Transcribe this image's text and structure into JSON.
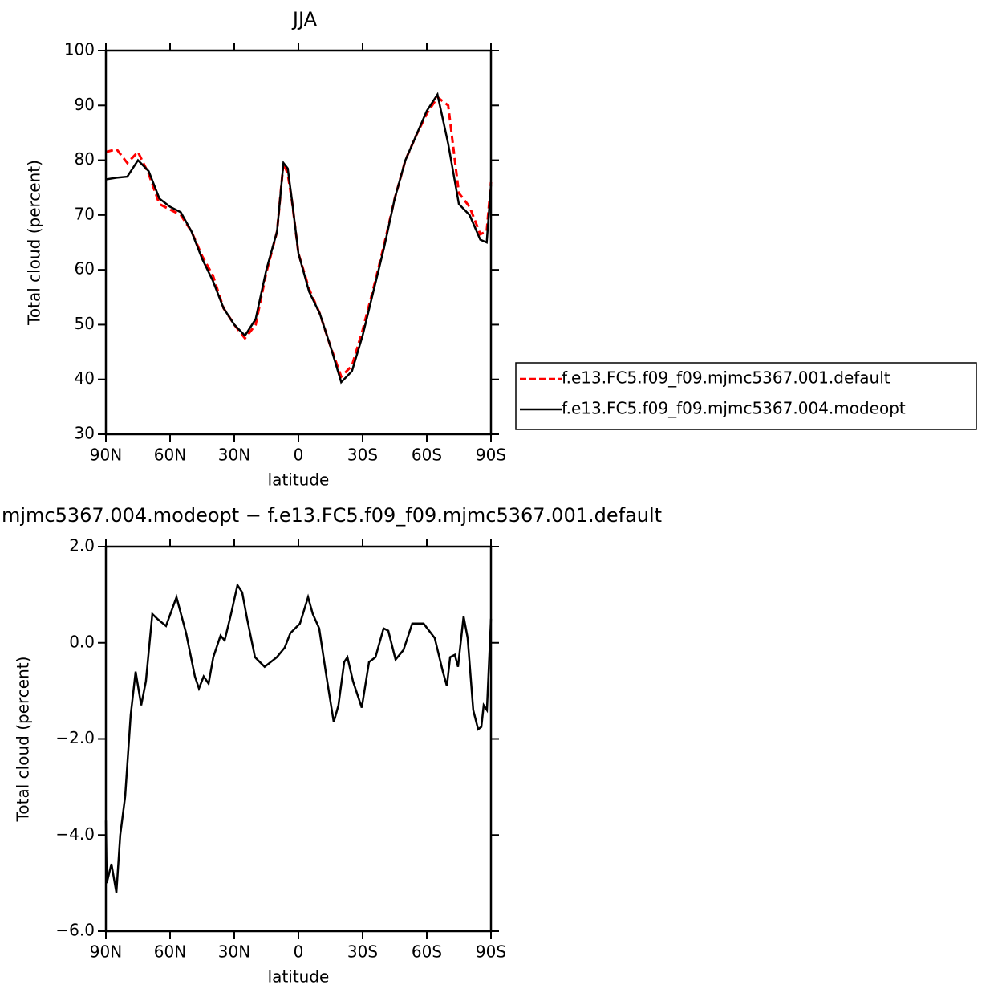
{
  "chart_data": [
    {
      "type": "line",
      "title": "JJA",
      "xlabel": "latitude",
      "ylabel": "Total cloud (percent)",
      "x": [
        90,
        85,
        80,
        75,
        70,
        65,
        60,
        55,
        50,
        45,
        40,
        35,
        30,
        25,
        20,
        15,
        10,
        7,
        5,
        3,
        0,
        -5,
        -10,
        -15,
        -20,
        -25,
        -30,
        -35,
        -40,
        -45,
        -50,
        -55,
        -60,
        -65,
        -70,
        -75,
        -80,
        -85,
        -88,
        -90
      ],
      "series": [
        {
          "name": "f.e13.FC5.f09_f09.mjmc5367.001.default",
          "color": "#ff0000",
          "linestyle": "dashed",
          "values": [
            81.5,
            82,
            79.5,
            81.5,
            77.5,
            72,
            71,
            70,
            67,
            62.5,
            59,
            53,
            50,
            47.5,
            50,
            59.5,
            67,
            79.5,
            77.5,
            72.5,
            63,
            56.5,
            52,
            46,
            40.5,
            42.5,
            49,
            56.5,
            64.5,
            73,
            80,
            84.5,
            88.5,
            91.5,
            90,
            74,
            71.5,
            66.5,
            67,
            76
          ]
        },
        {
          "name": "f.e13.FC5.f09_f09.mjmc5367.004.modeopt",
          "color": "#000000",
          "linestyle": "solid",
          "values": [
            76.5,
            76.8,
            77,
            80,
            78,
            73,
            71.5,
            70.5,
            67,
            62,
            58,
            53,
            50,
            48,
            51,
            60,
            67,
            79.5,
            78.5,
            72.6,
            63,
            56,
            52,
            46,
            39.5,
            41.5,
            48,
            56,
            64,
            73,
            80,
            84.5,
            89,
            92,
            83,
            72,
            70,
            65.5,
            65,
            75.5
          ]
        }
      ],
      "xlim": [
        90,
        -90
      ],
      "xticks": [
        {
          "value": 90,
          "label": "90N"
        },
        {
          "value": 60,
          "label": "60N"
        },
        {
          "value": 30,
          "label": "30N"
        },
        0,
        {
          "value": -30,
          "label": "30S"
        },
        {
          "value": -60,
          "label": "60S"
        },
        {
          "value": -90,
          "label": "90S"
        }
      ],
      "ylim": [
        30,
        100
      ],
      "yticks": [
        30,
        40,
        50,
        60,
        70,
        80,
        90,
        100
      ],
      "legend": "right"
    },
    {
      "type": "line",
      "title": "mjmc5367.004.modeopt − f.e13.FC5.f09_f09.mjmc5367.001.default",
      "xlabel": "latitude",
      "ylabel": "Total cloud (percent)",
      "x": [
        90,
        89.6,
        87.4,
        85.1,
        83.3,
        81,
        78.4,
        76.1,
        73.5,
        71.3,
        68.3,
        66,
        61.9,
        57,
        52.5,
        48.4,
        46.5,
        44.3,
        42,
        39.8,
        36.4,
        34.5,
        31.5,
        28.5,
        26.3,
        24,
        20.3,
        15.8,
        10.1,
        6.4,
        3.8,
        -0.7,
        -4.5,
        -6.7,
        -9.7,
        -13.1,
        -16.5,
        -18.7,
        -21.4,
        -22.9,
        -25.5,
        -29.6,
        -33,
        -36,
        -39.8,
        -42,
        -45.4,
        -49.1,
        -53.2,
        -58.5,
        -63.7,
        -67.5,
        -69.4,
        -70.9,
        -73.1,
        -74.6,
        -77.2,
        -79.1,
        -81.7,
        -84,
        -85.5,
        -86.6,
        -88.1,
        -90
      ],
      "series": [
        {
          "name": null,
          "color": "#000000",
          "linestyle": "solid",
          "values": [
            -3.7,
            -5.0,
            -4.6,
            -5.2,
            -4.0,
            -3.2,
            -1.5,
            -0.6,
            -1.3,
            -0.8,
            0.6,
            0.5,
            0.35,
            0.95,
            0.2,
            -0.7,
            -0.95,
            -0.7,
            -0.85,
            -0.3,
            0.15,
            0.05,
            0.6,
            1.2,
            1.05,
            0.5,
            -0.3,
            -0.5,
            -0.3,
            -0.1,
            0.2,
            0.4,
            0.95,
            0.6,
            0.3,
            -0.7,
            -1.65,
            -1.3,
            -0.4,
            -0.3,
            -0.8,
            -1.35,
            -0.4,
            -0.3,
            0.3,
            0.25,
            -0.35,
            -0.15,
            0.4,
            0.4,
            0.1,
            -0.6,
            -0.9,
            -0.3,
            -0.25,
            -0.5,
            0.55,
            0.1,
            -1.4,
            -1.8,
            -1.75,
            -1.3,
            -1.4,
            0.5
          ]
        }
      ],
      "xlim": [
        90,
        -90
      ],
      "xticks": [
        {
          "value": 90,
          "label": "90N"
        },
        {
          "value": 60,
          "label": "60N"
        },
        {
          "value": 30,
          "label": "30N"
        },
        0,
        {
          "value": -30,
          "label": "30S"
        },
        {
          "value": -60,
          "label": "60S"
        },
        {
          "value": -90,
          "label": "90S"
        }
      ],
      "ylim": [
        -6,
        2
      ],
      "yticks": [
        {
          "value": -6,
          "label": "−6.0"
        },
        {
          "value": -4,
          "label": "−4.0"
        },
        {
          "value": -2,
          "label": "−2.0"
        },
        {
          "value": 0,
          "label": "0.0"
        },
        {
          "value": 2,
          "label": "2.0"
        }
      ]
    }
  ]
}
